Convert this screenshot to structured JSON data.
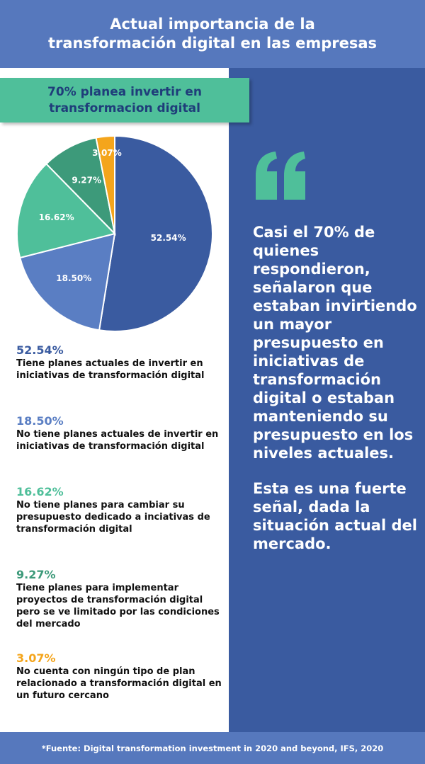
{
  "header": {
    "line1": "Actual importancia de la",
    "line2": "transformación digital en las empresas"
  },
  "banner": {
    "line1": "70% planea invertir en",
    "line2": "transformacion digital"
  },
  "chart_data": {
    "type": "pie",
    "slices": [
      {
        "label": "52.54%",
        "value": 52.54,
        "color": "#3a5ba0"
      },
      {
        "label": "18.50%",
        "value": 18.5,
        "color": "#5a7ec3"
      },
      {
        "label": "16.62%",
        "value": 16.62,
        "color": "#4fbf9a"
      },
      {
        "label": "9.27%",
        "value": 9.27,
        "color": "#3d9a7a"
      },
      {
        "label": "3.07%",
        "value": 3.07,
        "color": "#f4a51c"
      }
    ]
  },
  "legend": [
    {
      "pct": "52.54%",
      "color": "#3a5ba0",
      "desc": "Tiene planes actuales de invertir en iniciativas de transformación digital"
    },
    {
      "pct": "18.50%",
      "color": "#5a7ec3",
      "desc": "No tiene planes actuales de invertir en iniciativas de transformación digital"
    },
    {
      "pct": "16.62%",
      "color": "#4fbf9a",
      "desc": "No tiene planes para cambiar su presupuesto dedicado a inciativas de transformación digital"
    },
    {
      "pct": "9.27%",
      "color": "#3d9a7a",
      "desc": "Tiene planes para implementar proyectos de transformación digital pero se ve limitado por las condiciones del mercado"
    },
    {
      "pct": "3.07%",
      "color": "#f4a51c",
      "desc": "No cuenta con ningún tipo de plan relacionado a transformación digital en un futuro cercano"
    }
  ],
  "quote": {
    "icon": "quote-icon",
    "icon_color": "#4fbf9a",
    "para1": "Casi el 70% de quienes respondieron, señalaron que estaban invirtiendo un mayor presupuesto en iniciativas de transformación digital o estaban manteniendo su presupuesto en los niveles actuales.",
    "para2": "Esta es una fuerte señal, dada la situación actual del mercado."
  },
  "footer": {
    "source": "*Fuente: Digital transformation investment in 2020 and beyond, IFS, 2020"
  }
}
